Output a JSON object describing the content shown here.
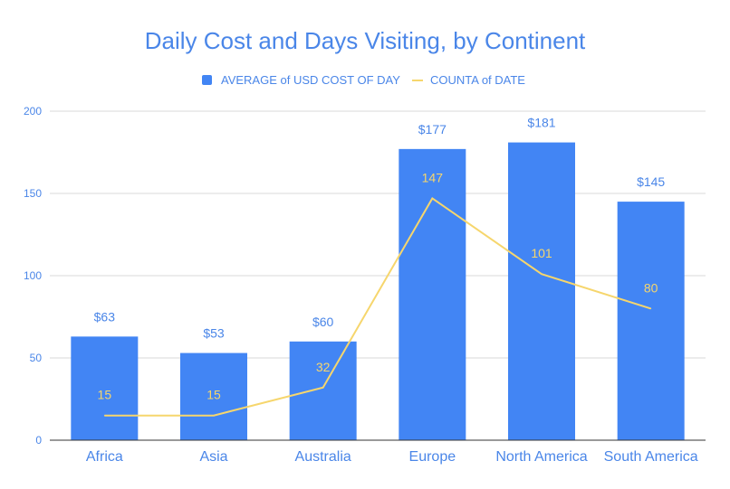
{
  "chart_data": {
    "type": "bar",
    "title": "Daily Cost and Days Visiting, by Continent",
    "categories": [
      "Africa",
      "Asia",
      "Australia",
      "Europe",
      "North America",
      "South America"
    ],
    "series": [
      {
        "name": "AVERAGE of USD COST OF DAY",
        "type": "bar",
        "values": [
          63,
          53,
          60,
          177,
          181,
          145
        ],
        "labels": [
          "$63",
          "$53",
          "$60",
          "$177",
          "$181",
          "$145"
        ],
        "color": "#4285f4"
      },
      {
        "name": "COUNTA of DATE",
        "type": "line",
        "values": [
          15,
          15,
          32,
          147,
          101,
          80
        ],
        "labels": [
          "15",
          "15",
          "32",
          "147",
          "101",
          "80"
        ],
        "color": "#f6d66d"
      }
    ],
    "ylim": [
      0,
      200
    ],
    "yticks": [
      "0",
      "50",
      "100",
      "150",
      "200"
    ],
    "grid": true,
    "legend_position": "top"
  }
}
